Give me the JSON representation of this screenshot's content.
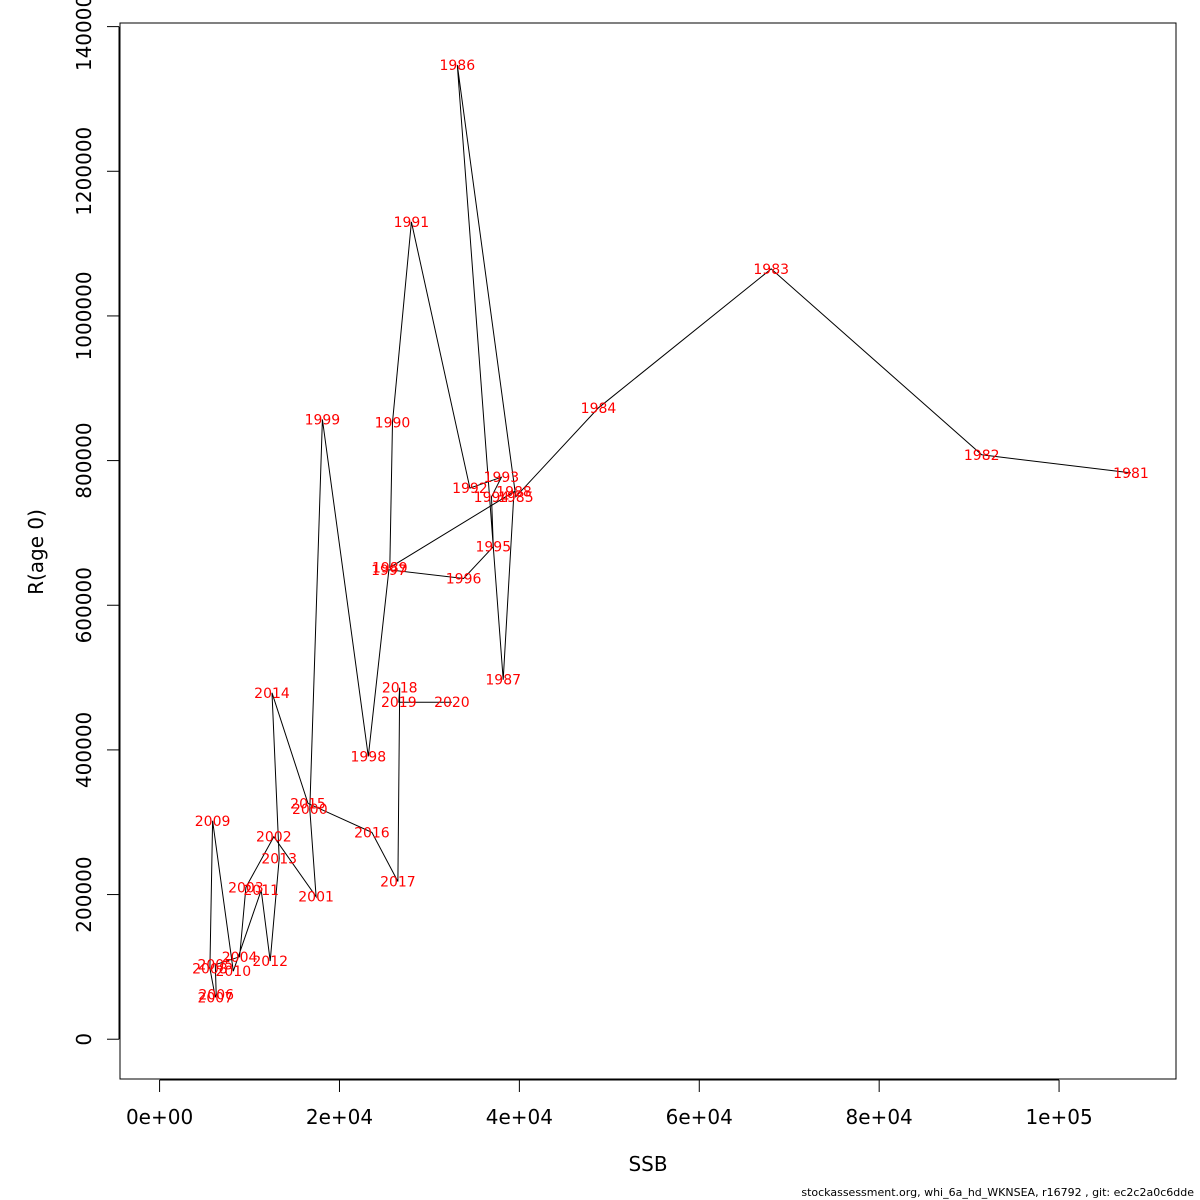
{
  "chart_data": {
    "type": "line",
    "title": "",
    "xlabel": "SSB",
    "ylabel": "R(age 0)",
    "xlim": [
      -4400,
      113000
    ],
    "ylim": [
      -55000,
      1405000
    ],
    "x_ticks": [
      0,
      20000,
      40000,
      60000,
      80000,
      100000
    ],
    "x_tick_labels": [
      "0e+00",
      "2e+04",
      "4e+04",
      "6e+04",
      "8e+04",
      "1e+05"
    ],
    "y_ticks": [
      0,
      200000,
      400000,
      600000,
      800000,
      1000000,
      1200000,
      1400000
    ],
    "y_tick_labels": [
      "0",
      "200000",
      "400000",
      "600000",
      "800000",
      "1000000",
      "1200000",
      "1400000"
    ],
    "grid": false,
    "line_color": "#000000",
    "label_color": "#ff0000",
    "points": [
      {
        "year": "1981",
        "x": 108000,
        "y": 783000
      },
      {
        "year": "1982",
        "x": 91400,
        "y": 808000
      },
      {
        "year": "1983",
        "x": 68000,
        "y": 1065000
      },
      {
        "year": "1984",
        "x": 48800,
        "y": 873000
      },
      {
        "year": "1985",
        "x": 39600,
        "y": 750000
      },
      {
        "year": "1986",
        "x": 33100,
        "y": 1347000
      },
      {
        "year": "1987",
        "x": 38200,
        "y": 497000
      },
      {
        "year": "1988",
        "x": 39400,
        "y": 757000
      },
      {
        "year": "1989",
        "x": 25600,
        "y": 652000
      },
      {
        "year": "1990",
        "x": 25900,
        "y": 853000
      },
      {
        "year": "1991",
        "x": 28000,
        "y": 1130000
      },
      {
        "year": "1992",
        "x": 34500,
        "y": 762000
      },
      {
        "year": "1993",
        "x": 38000,
        "y": 777000
      },
      {
        "year": "1994",
        "x": 36900,
        "y": 750000
      },
      {
        "year": "1995",
        "x": 37100,
        "y": 681000
      },
      {
        "year": "1996",
        "x": 33800,
        "y": 637000
      },
      {
        "year": "1997",
        "x": 25500,
        "y": 649000
      },
      {
        "year": "1998",
        "x": 23200,
        "y": 391000
      },
      {
        "year": "1999",
        "x": 18100,
        "y": 857000
      },
      {
        "year": "2000",
        "x": 16700,
        "y": 318000
      },
      {
        "year": "2001",
        "x": 17400,
        "y": 197000
      },
      {
        "year": "2002",
        "x": 12700,
        "y": 280000
      },
      {
        "year": "2003",
        "x": 9600,
        "y": 210000
      },
      {
        "year": "2004",
        "x": 8900,
        "y": 114000
      },
      {
        "year": "2005",
        "x": 6200,
        "y": 103000
      },
      {
        "year": "2006",
        "x": 6300,
        "y": 62000
      },
      {
        "year": "2007",
        "x": 6200,
        "y": 58000
      },
      {
        "year": "2008",
        "x": 5600,
        "y": 98000
      },
      {
        "year": "2009",
        "x": 5900,
        "y": 302000
      },
      {
        "year": "2010",
        "x": 8200,
        "y": 94000
      },
      {
        "year": "2011",
        "x": 11300,
        "y": 206000
      },
      {
        "year": "2012",
        "x": 12300,
        "y": 108000
      },
      {
        "year": "2013",
        "x": 13300,
        "y": 250000
      },
      {
        "year": "2014",
        "x": 12500,
        "y": 479000
      },
      {
        "year": "2015",
        "x": 16500,
        "y": 326000
      },
      {
        "year": "2016",
        "x": 23600,
        "y": 286000
      },
      {
        "year": "2017",
        "x": 26500,
        "y": 218000
      },
      {
        "year": "2018",
        "x": 26700,
        "y": 486000
      },
      {
        "year": "2019",
        "x": 26600,
        "y": 466000
      },
      {
        "year": "2020",
        "x": 32500,
        "y": 466000
      }
    ]
  },
  "footer_text": "stockassessment.org, whi_6a_hd_WKNSEA, r16792 , git: ec2c2a0c6dde"
}
